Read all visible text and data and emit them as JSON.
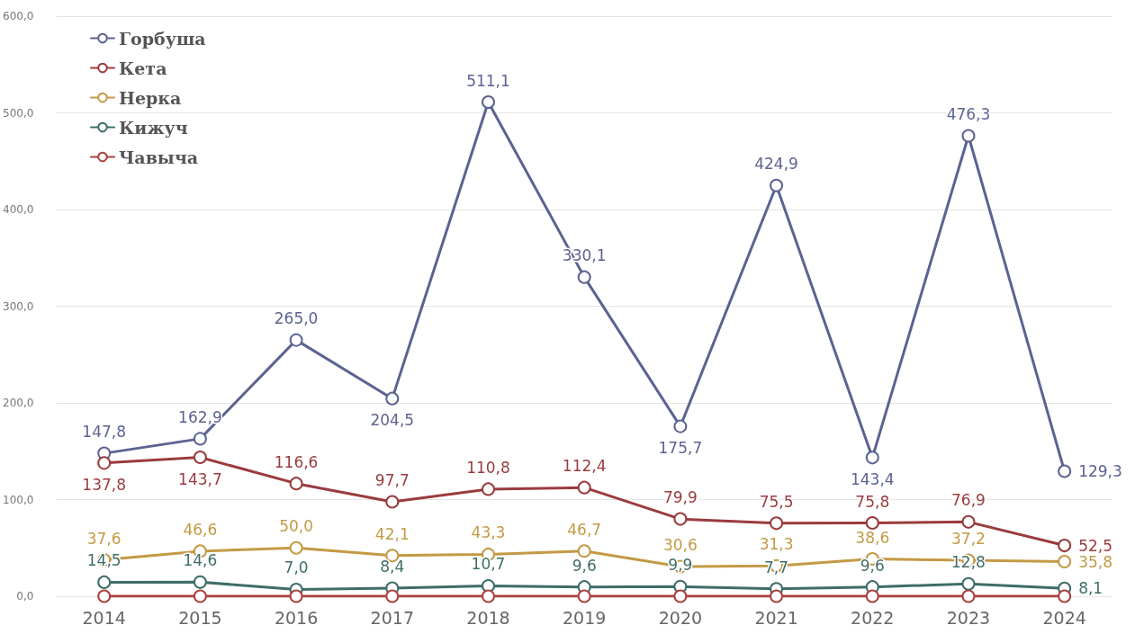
{
  "chart_data": {
    "type": "line",
    "categories": [
      "2014",
      "2015",
      "2016",
      "2017",
      "2018",
      "2019",
      "2020",
      "2021",
      "2022",
      "2023",
      "2024"
    ],
    "series": [
      {
        "name": "Горбуша",
        "color": "#5b6391",
        "values": [
          147.8,
          162.9,
          265.0,
          204.5,
          511.1,
          330.1,
          175.7,
          424.9,
          143.4,
          476.3,
          129.3
        ],
        "value_labels": [
          "147,8",
          "162,9",
          "265,0",
          "204,5",
          "511,1",
          "330,1",
          "175,7",
          "424,9",
          "143,4",
          "476,3",
          "129,3"
        ]
      },
      {
        "name": "Кета",
        "color": "#9a3b3e",
        "values": [
          137.8,
          143.7,
          116.6,
          97.7,
          110.8,
          112.4,
          79.9,
          75.5,
          75.8,
          76.9,
          52.5
        ],
        "value_labels": [
          "137,8",
          "143,7",
          "116,6",
          "97,7",
          "110,8",
          "112,4",
          "79,9",
          "75,5",
          "75,8",
          "76,9",
          "52,5"
        ]
      },
      {
        "name": "Нерка",
        "color": "#c39a45",
        "values": [
          37.6,
          46.6,
          50.0,
          42.1,
          43.3,
          46.7,
          30.6,
          31.3,
          38.6,
          37.2,
          35.8
        ],
        "value_labels": [
          "37,6",
          "46,6",
          "50,0",
          "42,1",
          "43,3",
          "46,7",
          "30,6",
          "31,3",
          "38,6",
          "37,2",
          "35,8"
        ]
      },
      {
        "name": "Кижуч",
        "color": "#3e6d68",
        "values": [
          14.5,
          14.6,
          7.0,
          8.4,
          10.7,
          9.6,
          9.9,
          7.7,
          9.6,
          12.8,
          8.1
        ],
        "value_labels": [
          "14,5",
          "14,6",
          "7,0",
          "8,4",
          "10,7",
          "9,6",
          "9,9",
          "7,7",
          "9,6",
          "12,8",
          "8,1"
        ]
      },
      {
        "name": "Чавыча",
        "color": "#a8423f",
        "values": [
          0,
          0,
          0,
          0,
          0,
          0,
          0,
          0,
          0,
          0,
          0
        ]
      }
    ],
    "ylim": [
      0,
      600
    ],
    "yticks": [
      {
        "value": 0,
        "label": "0,0"
      },
      {
        "value": 100,
        "label": "100,0"
      },
      {
        "value": 200,
        "label": "200,0"
      },
      {
        "value": 300,
        "label": "300,0"
      },
      {
        "value": 400,
        "label": "400,0"
      },
      {
        "value": 500,
        "label": "500,0"
      },
      {
        "value": 600,
        "label": "600,0"
      }
    ],
    "grid": "y",
    "legend": "top left",
    "marker": "circle",
    "line_style": "solid"
  }
}
